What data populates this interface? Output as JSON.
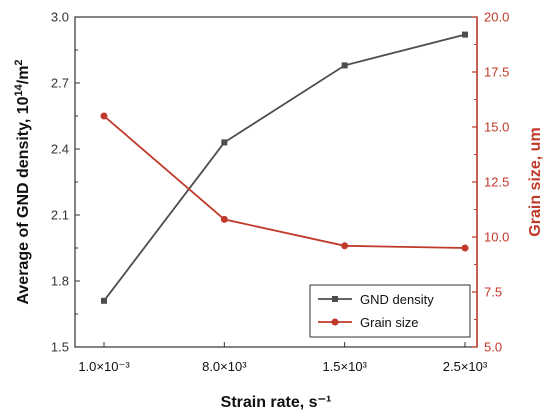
{
  "chart_data": {
    "type": "line",
    "categories": [
      "1.0×10⁻³",
      "8.0×10³",
      "1.5×10³",
      "2.5×10³"
    ],
    "xlabel": "Strain rate, s⁻¹",
    "ylabel_left": {
      "prefix": "Average of GND density, 10",
      "sup": "14",
      "suffix": "/m",
      "sup2": "2"
    },
    "ylabel_right": "Grain size, um",
    "ylim_left": [
      1.5,
      3.0
    ],
    "yticks_left": [
      "1.5",
      "1.8",
      "2.1",
      "2.4",
      "2.7",
      "3.0"
    ],
    "ylim_right": [
      5.0,
      20.0
    ],
    "yticks_right": [
      "5.0",
      "7.5",
      "10.0",
      "12.5",
      "15.0",
      "17.5",
      "20.0"
    ],
    "series": [
      {
        "name": "GND density",
        "axis": "left",
        "color": "#4d4d4d",
        "marker": "square",
        "values": [
          1.71,
          2.43,
          2.78,
          2.92
        ]
      },
      {
        "name": "Grain size",
        "axis": "right",
        "color": "#c0392b",
        "marker": "circle",
        "values": [
          15.5,
          10.8,
          9.6,
          9.5
        ]
      }
    ],
    "legend_position": "bottom-right",
    "grid": false
  }
}
